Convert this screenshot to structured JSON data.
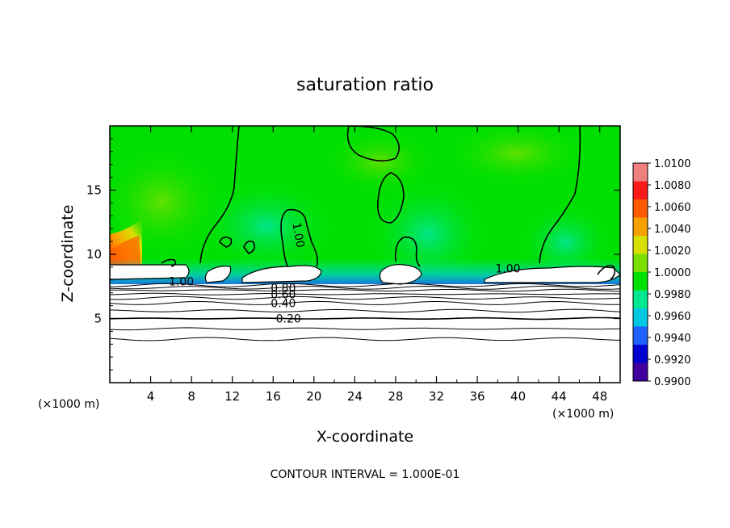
{
  "chart_data": {
    "type": "heatmap",
    "title": "saturation ratio",
    "xlabel": "X-coordinate",
    "ylabel": "Z-coordinate",
    "x_unit_left": "(×1000 m)",
    "x_unit_right": "(×1000 m)",
    "xlim": [
      0,
      50
    ],
    "ylim": [
      0,
      20
    ],
    "x_ticks": [
      4,
      8,
      12,
      16,
      20,
      24,
      28,
      32,
      36,
      40,
      44,
      48
    ],
    "y_ticks": [
      5,
      10,
      15
    ],
    "footer": "CONTOUR INTERVAL = 1.000E-01",
    "colorbar": {
      "min": 0.99,
      "max": 1.01,
      "labels": [
        "1.0100",
        "1.0080",
        "1.0060",
        "1.0040",
        "1.0020",
        "1.0000",
        "0.9980",
        "0.9960",
        "0.9940",
        "0.9920",
        "0.9900"
      ],
      "colors": [
        "#f08080",
        "#ff1a1a",
        "#ff5a00",
        "#f5a000",
        "#d8e000",
        "#7ae000",
        "#00e000",
        "#00e890",
        "#00c8e0",
        "#2060ff",
        "#0000d0",
        "#4000a0"
      ]
    },
    "contour_labels": [
      {
        "text": "0.20",
        "x": 17.5,
        "z": 5.0
      },
      {
        "text": "0.40",
        "x": 17.0,
        "z": 6.2
      },
      {
        "text": "0.60",
        "x": 17.0,
        "z": 6.9
      },
      {
        "text": "0.80",
        "x": 17.0,
        "z": 7.4
      },
      {
        "text": "1.00",
        "x": 7.0,
        "z": 7.9
      },
      {
        "text": "1.00",
        "x": 18.5,
        "z": 11.5
      },
      {
        "text": "1.00",
        "x": 39.0,
        "z": 8.9
      }
    ],
    "horizontal_contours_z": [
      3.4,
      4.2,
      5.0,
      5.6,
      6.2,
      6.6,
      6.9,
      7.2,
      7.4,
      7.6
    ]
  }
}
